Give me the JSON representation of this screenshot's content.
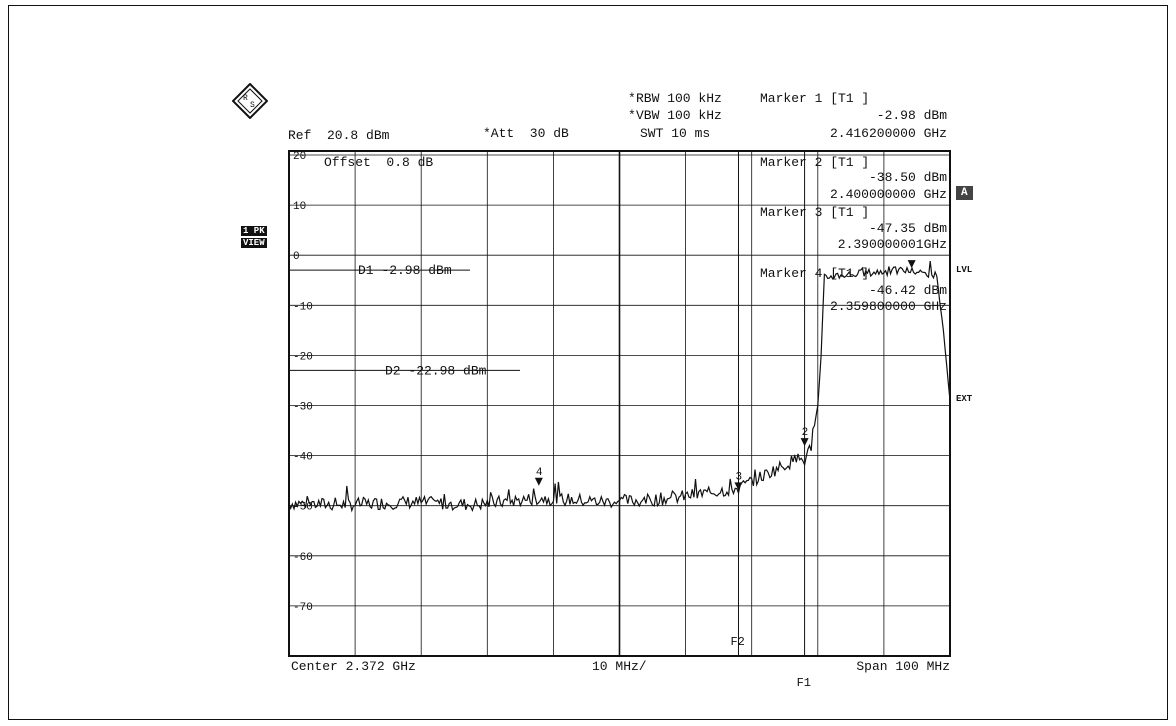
{
  "header": {
    "rbw": "RBW 100 kHz",
    "vbw": "VBW 100 kHz",
    "swt": "SWT 10 ms",
    "rbw_star": "*",
    "vbw_star": "*",
    "ref": "Ref  20.8 dBm",
    "att": "*Att  30 dB",
    "marker1_title": "Marker 1 [T1 ]",
    "marker1_level": "-2.98 dBm",
    "marker1_freq": "2.416200000 GHz"
  },
  "logo_text": "R&S",
  "side_labels": {
    "trace_mode": "1 PK",
    "view": "VIEW",
    "a_badge": "A",
    "lvl": "LVL",
    "ext": "EXT"
  },
  "offset_label": "Offset  0.8 dB",
  "marker_boxes": [
    {
      "title": "Marker 2 [T1 ]",
      "level": "-38.50 dBm",
      "freq": "2.400000000 GHz"
    },
    {
      "title": "Marker 3 [T1 ]",
      "level": "-47.35 dBm",
      "freq": "2.390000001GHz"
    },
    {
      "title": "Marker 4 [T1 ]",
      "level": "-46.42 dBm",
      "freq": "2.359800000 GHz"
    }
  ],
  "footer": {
    "center": "Center 2.372 GHz",
    "div": "10 MHz/",
    "span": "Span 100 MHz"
  },
  "chart_data": {
    "type": "line",
    "ylabel_unit": "dBm",
    "ylim": [
      -80,
      20.8
    ],
    "y_ticks": [
      20,
      10,
      0,
      -10,
      -20,
      -30,
      -40,
      -50,
      -60,
      -70
    ],
    "y_tick_labels": [
      "20",
      "10",
      "0",
      "-10",
      "-20",
      "-30",
      "-40",
      "-50",
      "-60",
      "-70"
    ],
    "xlim_ghz": [
      2.322,
      2.422
    ],
    "grid": true,
    "display_lines": [
      {
        "name": "D1",
        "label": "D1 -2.98 dBm",
        "value": -2.98
      },
      {
        "name": "D2",
        "label": "D2 -22.98 dBm",
        "value": -22.98
      }
    ],
    "frequency_lines": [
      {
        "name": "F2",
        "x_ghz": 2.39
      },
      {
        "name": "F1",
        "x_ghz": 2.4
      }
    ],
    "markers": [
      {
        "id": "1",
        "x_ghz": 2.4162,
        "y": -2.98
      },
      {
        "id": "2",
        "x_ghz": 2.4,
        "y": -38.5
      },
      {
        "id": "3",
        "x_ghz": 2.39,
        "y": -47.35
      },
      {
        "id": "4",
        "x_ghz": 2.3598,
        "y": -46.42
      }
    ],
    "series": [
      {
        "x_ghz": [
          2.322,
          2.33,
          2.34,
          2.35,
          2.36,
          2.37,
          2.375,
          2.38,
          2.385,
          2.39,
          2.393,
          2.396,
          2.399,
          2.4,
          2.401,
          2.402,
          2.4025,
          2.403,
          2.405,
          2.41,
          2.415,
          2.42,
          2.421,
          2.422
        ],
        "y": [
          -49.5,
          -49.8,
          -49.3,
          -49.8,
          -48.5,
          -49.2,
          -49.0,
          -48.5,
          -47.5,
          -46.5,
          -44.5,
          -42.5,
          -40.5,
          -41.0,
          -38.0,
          -30.0,
          -20.0,
          -4.5,
          -4.0,
          -3.5,
          -3.0,
          -4.0,
          -15.0,
          -29.0
        ]
      }
    ]
  }
}
